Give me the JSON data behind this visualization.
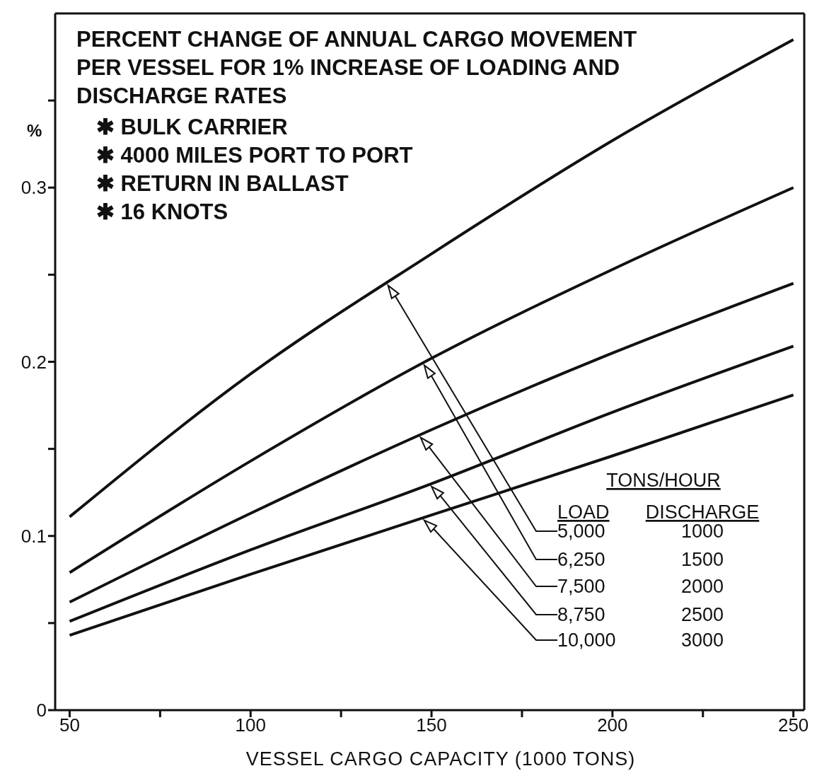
{
  "chart_data": {
    "type": "line",
    "title": "PERCENT CHANGE OF ANNUAL CARGO MOVEMENT PER VESSEL FOR 1% INCREASE OF LOADING AND DISCHARGE RATES",
    "xlabel": "VESSEL CARGO CAPACITY (1000 TONS)",
    "ylabel": "%",
    "legend_title": "TONS/HOUR",
    "annotations": [
      "✱ BULK CARRIER",
      "✱ 4000 MILES PORT TO PORT",
      "✱ RETURN IN BALLAST",
      "✱ 16 KNOTS",
      "LOAD",
      "DISCHARGE",
      "1000",
      "1500",
      "2000",
      "2500",
      "3000"
    ],
    "x": [
      50,
      100,
      150,
      200,
      250
    ],
    "series": [
      {
        "name": "5,000",
        "color": "#111111",
        "values": [
          0.111,
          0.193,
          0.262,
          0.327,
          0.385
        ]
      },
      {
        "name": "6,250",
        "color": "#111111",
        "values": [
          0.079,
          0.143,
          0.202,
          0.253,
          0.3
        ]
      },
      {
        "name": "7,500",
        "color": "#111111",
        "values": [
          0.062,
          0.113,
          0.161,
          0.205,
          0.245
        ]
      },
      {
        "name": "8,750",
        "color": "#111111",
        "values": [
          0.051,
          0.092,
          0.13,
          0.171,
          0.209
        ]
      },
      {
        "name": "10,000",
        "color": "#111111",
        "values": [
          0.043,
          0.078,
          0.112,
          0.146,
          0.181
        ]
      }
    ],
    "xlim": [
      46,
      253
    ],
    "ylim": [
      0,
      0.4
    ],
    "xticks": [
      50,
      {
        "value": 75,
        "label": null
      },
      100,
      {
        "value": 125,
        "label": null
      },
      150,
      {
        "value": 175,
        "label": null
      },
      200,
      {
        "value": 225,
        "label": null
      },
      250
    ],
    "yticks": [
      0,
      {
        "value": 0.05,
        "label": null
      },
      0.1,
      {
        "value": 0.15,
        "label": null
      },
      0.2,
      {
        "value": 0.25,
        "label": null
      },
      0.3,
      {
        "value": 0.35,
        "label": null
      }
    ],
    "legend": "bottom right",
    "marker": "none",
    "line_style": "solid"
  }
}
